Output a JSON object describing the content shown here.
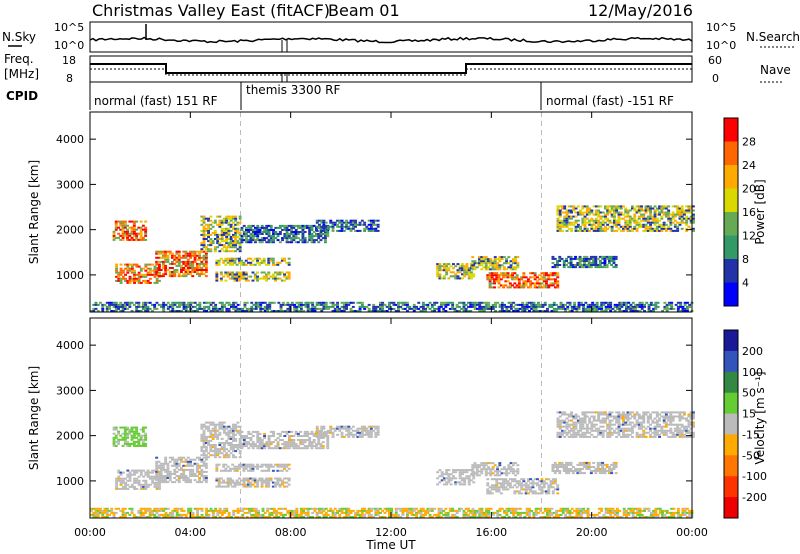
{
  "header": {
    "title": "Christmas Valley East (fitACF)",
    "beam": "Beam 01",
    "date": "12/May/2016"
  },
  "top_panels": {
    "nsky_label": "N.Sky",
    "nsky_ticks": [
      "10^5",
      "10^0"
    ],
    "nsearch_label": "N.Search",
    "nsearch_ticks": [
      "10^5",
      "10^0"
    ],
    "freq_label_1": "Freq.",
    "freq_label_2": "[MHz]",
    "freq_ticks": [
      "18",
      "8"
    ],
    "nave_label": "Nave",
    "nave_ticks": [
      "60",
      "0"
    ],
    "cpid_label": "CPID",
    "cpid_segments": [
      "normal (fast) 151 RF",
      "themis 3300 RF",
      "normal (fast) -151 RF"
    ]
  },
  "chart_data": [
    {
      "type": "heatmap",
      "name": "power-panel",
      "ylabel": "Slant Range [km]",
      "yticks": [
        "4000",
        "3000",
        "2000",
        "1000"
      ],
      "ytick_values": [
        4000,
        3000,
        2000,
        1000
      ],
      "ylim": [
        180,
        4600
      ],
      "xlim_hours": [
        0,
        24
      ],
      "colorbar": {
        "label": "Power [dB]",
        "ticks": [
          "28",
          "24",
          "20",
          "16",
          "12",
          "8",
          "4"
        ],
        "colors": [
          "#ff0000",
          "#ff6600",
          "#ffaa00",
          "#d9d900",
          "#66aa55",
          "#339966",
          "#2233aa",
          "#0000ff"
        ]
      },
      "echo_regions": [
        {
          "t0": 0.9,
          "t1": 2.2,
          "r0": 1750,
          "r1": 2200,
          "level": "high"
        },
        {
          "t0": 1.0,
          "t1": 2.8,
          "r0": 800,
          "r1": 1250,
          "level": "high"
        },
        {
          "t0": 2.6,
          "t1": 4.6,
          "r0": 950,
          "r1": 1500,
          "level": "high"
        },
        {
          "t0": 4.4,
          "t1": 6.0,
          "r0": 1500,
          "r1": 2300,
          "level": "mid"
        },
        {
          "t0": 5.0,
          "t1": 7.9,
          "r0": 1200,
          "r1": 1350,
          "level": "mid"
        },
        {
          "t0": 5.0,
          "t1": 7.9,
          "r0": 850,
          "r1": 1050,
          "level": "mid"
        },
        {
          "t0": 6.0,
          "t1": 9.5,
          "r0": 1700,
          "r1": 2100,
          "level": "low"
        },
        {
          "t0": 9.0,
          "t1": 11.5,
          "r0": 1950,
          "r1": 2200,
          "level": "low"
        },
        {
          "t0": 13.8,
          "t1": 15.3,
          "r0": 900,
          "r1": 1250,
          "level": "mid"
        },
        {
          "t0": 15.2,
          "t1": 17.0,
          "r0": 1100,
          "r1": 1400,
          "level": "mid"
        },
        {
          "t0": 15.8,
          "t1": 18.6,
          "r0": 700,
          "r1": 1050,
          "level": "high"
        },
        {
          "t0": 18.4,
          "t1": 21.0,
          "r0": 1150,
          "r1": 1400,
          "level": "low"
        },
        {
          "t0": 18.6,
          "t1": 24.0,
          "r0": 1950,
          "r1": 2500,
          "level": "mid"
        },
        {
          "t0": 0.0,
          "t1": 24.0,
          "r0": 180,
          "r1": 380,
          "level": "low"
        }
      ]
    },
    {
      "type": "heatmap",
      "name": "velocity-panel",
      "ylabel": "Slant Range [km]",
      "yticks": [
        "4000",
        "3000",
        "2000",
        "1000"
      ],
      "ytick_values": [
        4000,
        3000,
        2000,
        1000
      ],
      "ylim": [
        180,
        4600
      ],
      "xlim_hours": [
        0,
        24
      ],
      "xlabel": "Time UT",
      "xticks": [
        "00:00",
        "04:00",
        "08:00",
        "12:00",
        "16:00",
        "20:00",
        "00:00"
      ],
      "xtick_hours": [
        0,
        4,
        8,
        12,
        16,
        20,
        24
      ],
      "colorbar": {
        "label": "Velocity [m s⁻¹]",
        "ticks": [
          "200",
          "100",
          "50",
          "15",
          "-15",
          "-50",
          "-100",
          "-200"
        ],
        "colors": [
          "#1a1a99",
          "#3355bb",
          "#338844",
          "#66cc33",
          "#bbbbbb",
          "#ffaa00",
          "#ff7700",
          "#ff3300",
          "#ee0000"
        ]
      }
    }
  ]
}
